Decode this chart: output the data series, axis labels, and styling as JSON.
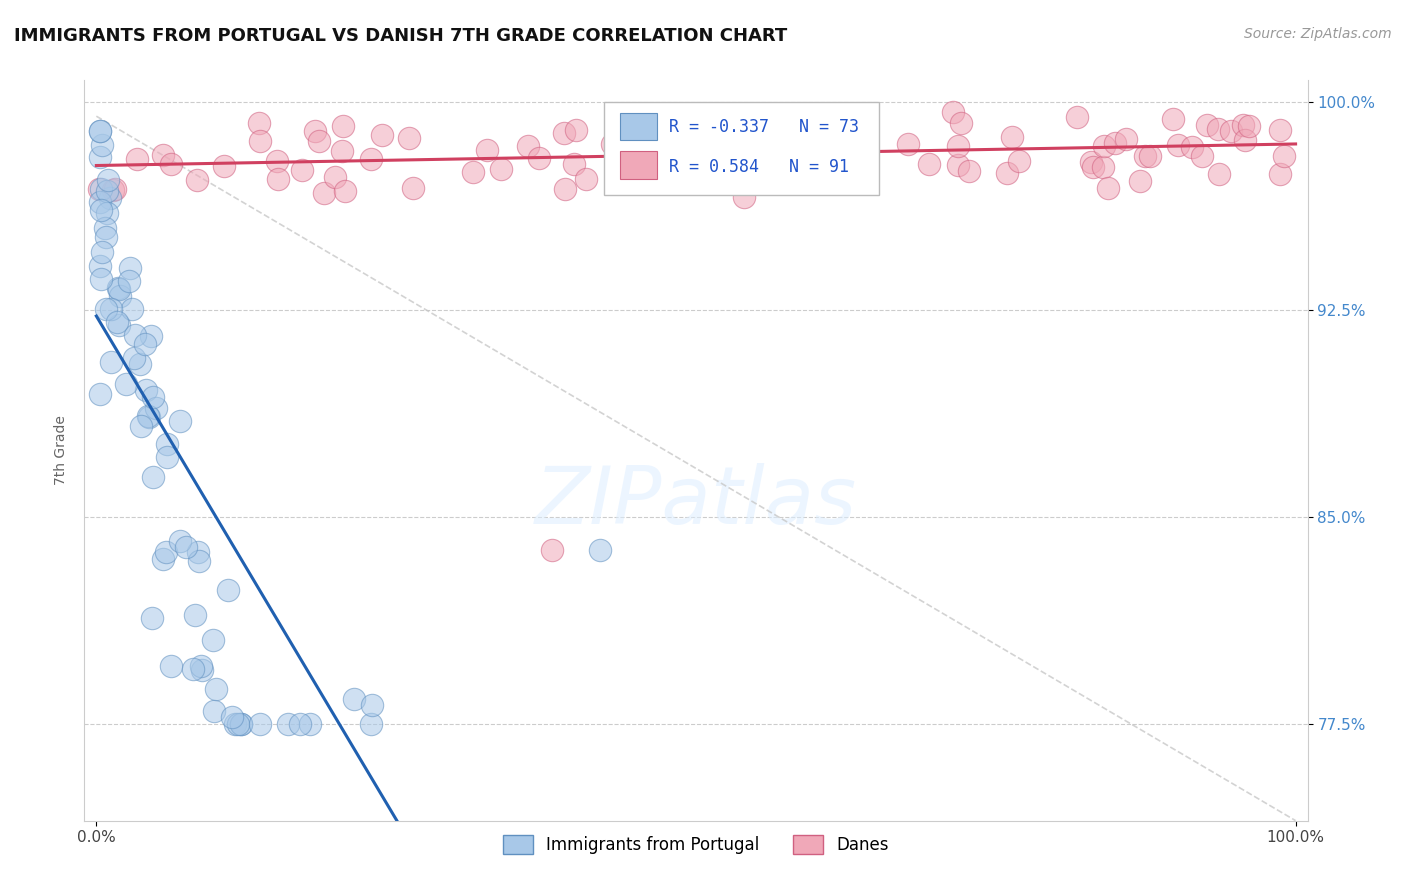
{
  "title": "IMMIGRANTS FROM PORTUGAL VS DANISH 7TH GRADE CORRELATION CHART",
  "source": "Source: ZipAtlas.com",
  "ylabel": "7th Grade",
  "ymin": 0.74,
  "ymax": 1.008,
  "xmin": -0.01,
  "xmax": 1.01,
  "r_blue": -0.337,
  "n_blue": 73,
  "r_pink": 0.584,
  "n_pink": 91,
  "blue_color": "#a8c8e8",
  "pink_color": "#f0a8b8",
  "blue_edge_color": "#6090c0",
  "pink_edge_color": "#d06080",
  "blue_line_color": "#2060b0",
  "pink_line_color": "#d04060",
  "diag_color": "#c8c8c8",
  "ytick_vals": [
    1.0,
    0.925,
    0.85,
    0.775
  ],
  "ytick_labels": [
    "100.0%",
    "92.5%",
    "85.0%",
    "77.5%"
  ],
  "watermark_text": "ZIPatlas",
  "legend_label_blue": "Immigrants from Portugal",
  "legend_label_pink": "Danes",
  "title_fontsize": 13,
  "source_fontsize": 10,
  "tick_fontsize": 11,
  "ylabel_fontsize": 10
}
